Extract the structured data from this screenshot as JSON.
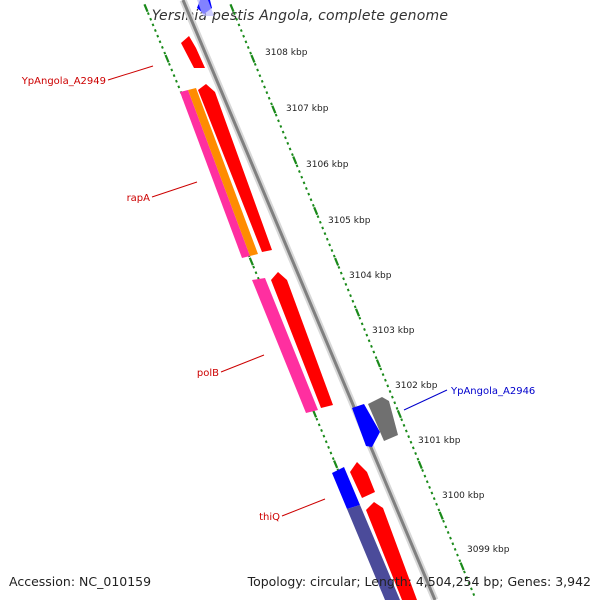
{
  "title": "Yersinia pestis Angola, complete genome",
  "footer": {
    "accession_label": "Accession:",
    "accession": "NC_010159",
    "topology_label": "Topology:",
    "topology": "circular;",
    "length_label": "Length:",
    "length": "4,504,254 bp;",
    "genes_label": "Genes:",
    "genes": "3,942"
  },
  "colors": {
    "backbone": "#909090",
    "ticks": "#1a8a1a",
    "red": "#ff0000",
    "pink": "#ff2fa0",
    "orange": "#ff8c00",
    "blue": "#0000ff",
    "slate": "#4b4b9a",
    "gray": "#707070",
    "label_red": "#cc0000",
    "label_blue": "#0000cc"
  },
  "kbp_labels": [
    "3108 kbp",
    "3107 kbp",
    "3106 kbp",
    "3105 kbp",
    "3104 kbp",
    "3103 kbp",
    "3102 kbp",
    "3101 kbp",
    "3100 kbp",
    "3099 kbp"
  ],
  "gene_labels": [
    {
      "id": "YpAngola_A2949",
      "text": "YpAngola_A2949",
      "color": "label_red"
    },
    {
      "id": "rapA",
      "text": "rapA",
      "color": "label_red"
    },
    {
      "id": "polB",
      "text": "polB",
      "color": "label_red"
    },
    {
      "id": "thiQ",
      "text": "thiQ",
      "color": "label_red"
    },
    {
      "id": "YpAngola_A2946",
      "text": "YpAngola_A2946",
      "color": "label_blue"
    }
  ]
}
